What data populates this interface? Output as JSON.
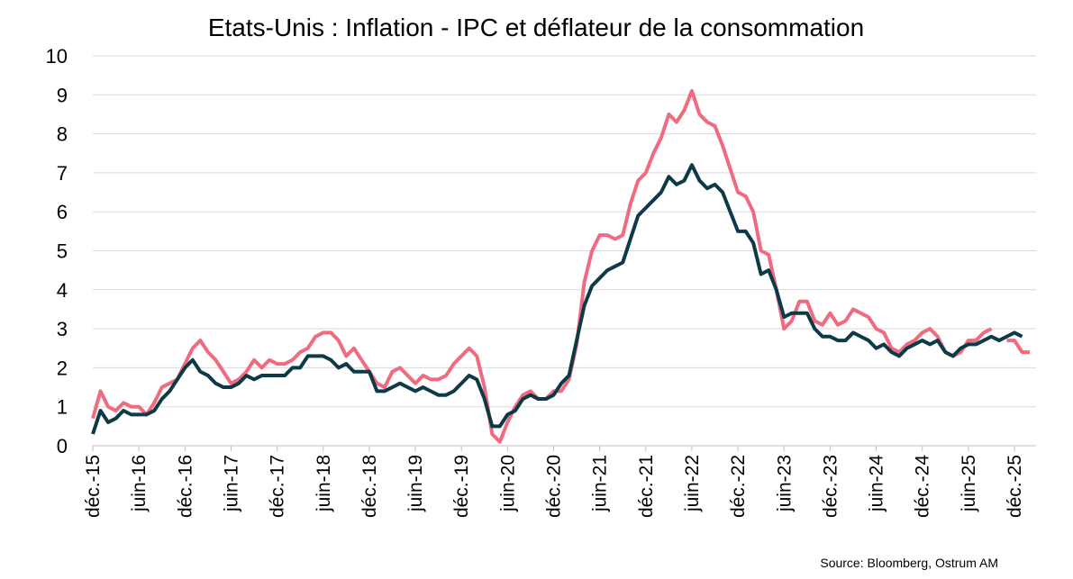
{
  "chart_data": {
    "type": "line",
    "title": "Etats-Unis : Inflation - IPC et déflateur de la consommation",
    "source": "Source: Bloomberg,  Ostrum AM",
    "categories": [
      "déc.-15",
      null,
      null,
      null,
      null,
      null,
      "juin-16",
      null,
      null,
      null,
      null,
      null,
      "déc.-16",
      null,
      null,
      null,
      null,
      null,
      "juin-17",
      null,
      null,
      null,
      null,
      null,
      "déc.-17",
      null,
      null,
      null,
      null,
      null,
      "juin-18",
      null,
      null,
      null,
      null,
      null,
      "déc.-18",
      null,
      null,
      null,
      null,
      null,
      "juin-19",
      null,
      null,
      null,
      null,
      null,
      "déc.-19",
      null,
      null,
      null,
      null,
      null,
      "juin-20",
      null,
      null,
      null,
      null,
      null,
      "déc.-20",
      null,
      null,
      null,
      null,
      null,
      "juin-21",
      null,
      null,
      null,
      null,
      null,
      "déc.-21",
      null,
      null,
      null,
      null,
      null,
      "juin-22",
      null,
      null,
      null,
      null,
      null,
      "déc.-22",
      null,
      null,
      null,
      null,
      null,
      "juin-23",
      null,
      null,
      null,
      null,
      null,
      "déc.-23",
      null,
      null,
      null,
      null,
      null,
      "juin-24",
      null,
      null,
      null,
      null,
      null,
      "déc.-24",
      null,
      null,
      null,
      null,
      null,
      "juin-25",
      null,
      null,
      null,
      null,
      null,
      "déc.-25",
      null,
      null
    ],
    "series": [
      {
        "color": "#f06b7f",
        "values": [
          0.7,
          1.4,
          1.0,
          0.9,
          1.1,
          1.0,
          1.0,
          0.8,
          1.1,
          1.5,
          1.6,
          1.7,
          2.1,
          2.5,
          2.7,
          2.4,
          2.2,
          1.9,
          1.6,
          1.7,
          1.9,
          2.2,
          2.0,
          2.2,
          2.1,
          2.1,
          2.2,
          2.4,
          2.5,
          2.8,
          2.9,
          2.9,
          2.7,
          2.3,
          2.5,
          2.2,
          1.9,
          1.6,
          1.5,
          1.9,
          2.0,
          1.8,
          1.6,
          1.8,
          1.7,
          1.7,
          1.8,
          2.1,
          2.3,
          2.5,
          2.3,
          1.5,
          0.3,
          0.1,
          0.6,
          1.0,
          1.3,
          1.4,
          1.2,
          1.2,
          1.4,
          1.4,
          1.7,
          2.6,
          4.2,
          5.0,
          5.4,
          5.4,
          5.3,
          5.4,
          6.2,
          6.8,
          7.0,
          7.5,
          7.9,
          8.5,
          8.3,
          8.6,
          9.1,
          8.5,
          8.3,
          8.2,
          7.7,
          7.1,
          6.5,
          6.4,
          6.0,
          5.0,
          4.9,
          4.0,
          3.0,
          3.2,
          3.7,
          3.7,
          3.2,
          3.1,
          3.4,
          3.1,
          3.2,
          3.5,
          3.4,
          3.3,
          3.0,
          2.9,
          2.5,
          2.4,
          2.6,
          2.7,
          2.9,
          3.0,
          2.8,
          2.4,
          2.3,
          2.4,
          2.7,
          2.7,
          2.9,
          3.0,
          null,
          2.7,
          2.7,
          2.4,
          2.4
        ]
      },
      {
        "color": "#0e3a47",
        "values": [
          0.3,
          0.9,
          0.6,
          0.7,
          0.9,
          0.8,
          0.8,
          0.8,
          0.9,
          1.2,
          1.4,
          1.7,
          2.0,
          2.2,
          1.9,
          1.8,
          1.6,
          1.5,
          1.5,
          1.6,
          1.8,
          1.7,
          1.8,
          1.8,
          1.8,
          1.8,
          2.0,
          2.0,
          2.3,
          2.3,
          2.3,
          2.2,
          2.0,
          2.1,
          1.9,
          1.9,
          1.9,
          1.4,
          1.4,
          1.5,
          1.6,
          1.5,
          1.4,
          1.5,
          1.4,
          1.3,
          1.3,
          1.4,
          1.6,
          1.8,
          1.7,
          1.2,
          0.5,
          0.5,
          0.8,
          0.9,
          1.2,
          1.3,
          1.2,
          1.2,
          1.3,
          1.6,
          1.8,
          2.7,
          3.6,
          4.1,
          4.3,
          4.5,
          4.6,
          4.7,
          5.3,
          5.9,
          6.1,
          6.3,
          6.5,
          6.9,
          6.7,
          6.8,
          7.2,
          6.8,
          6.6,
          6.7,
          6.5,
          6.0,
          5.5,
          5.5,
          5.2,
          4.4,
          4.5,
          4.0,
          3.3,
          3.4,
          3.4,
          3.4,
          3.0,
          2.8,
          2.8,
          2.7,
          2.7,
          2.9,
          2.8,
          2.7,
          2.5,
          2.6,
          2.4,
          2.3,
          2.5,
          2.6,
          2.7,
          2.6,
          2.7,
          2.4,
          2.3,
          2.5,
          2.6,
          2.6,
          2.7,
          2.8,
          2.7,
          2.8,
          2.9,
          2.8,
          null
        ]
      }
    ],
    "ylim": [
      0,
      10
    ],
    "yticks": [
      0,
      1,
      2,
      3,
      4,
      5,
      6,
      7,
      8,
      9,
      10
    ],
    "grid": true
  }
}
